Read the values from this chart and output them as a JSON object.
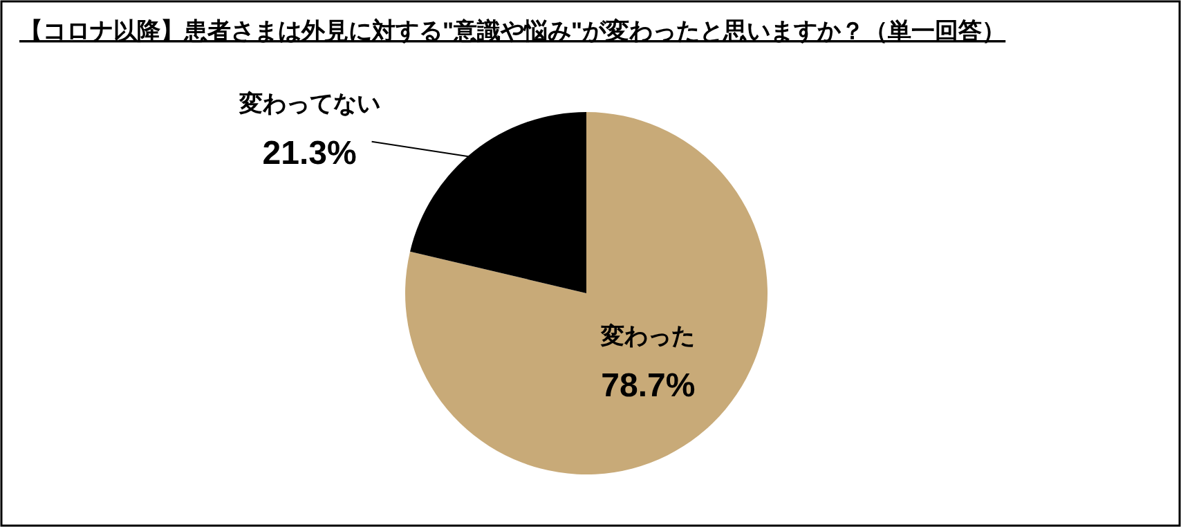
{
  "chart_data": {
    "type": "pie",
    "title": "【コロナ以降】患者さまは外見に対する\"意識や悩み\"が変わったと思いますか？（単一回答）",
    "categories": [
      "変わった",
      "変わってない"
    ],
    "values": [
      78.7,
      21.3
    ],
    "colors": [
      "#c8aa78",
      "#000000"
    ],
    "value_labels": [
      "78.7%",
      "21.3%"
    ],
    "legend": false
  }
}
